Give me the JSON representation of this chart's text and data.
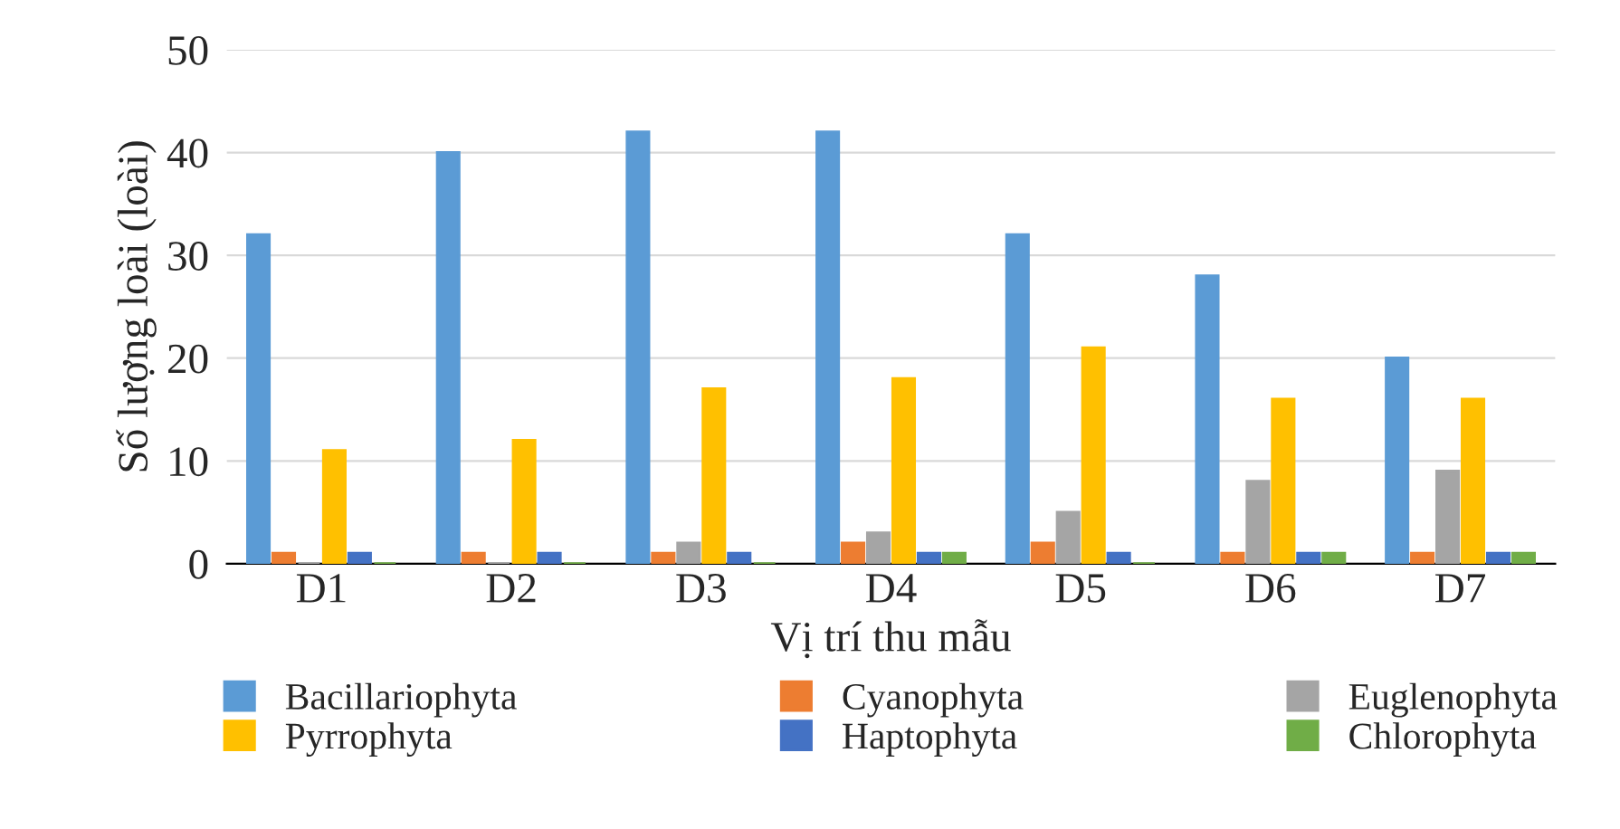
{
  "chart_data": {
    "type": "bar",
    "xlabel": "Vị trí thu mẫu",
    "ylabel": "Số lượng loài (loài)",
    "categories": [
      "D1",
      "D2",
      "D3",
      "D4",
      "D5",
      "D6",
      "D7"
    ],
    "series": [
      {
        "name": "Bacillariophyta",
        "color": "#5b9bd5",
        "values": [
          32,
          40,
          42,
          42,
          32,
          28,
          20
        ]
      },
      {
        "name": "Cyanophyta",
        "color": "#ed7d31",
        "values": [
          1,
          1,
          1,
          2,
          2,
          1,
          1
        ]
      },
      {
        "name": "Euglenophyta",
        "color": "#a5a5a5",
        "values": [
          0,
          0,
          2,
          3,
          5,
          8,
          9
        ]
      },
      {
        "name": "Pyrrophyta",
        "color": "#ffc000",
        "values": [
          11,
          12,
          17,
          18,
          21,
          16,
          16
        ]
      },
      {
        "name": "Haptophyta",
        "color": "#4472c4",
        "values": [
          1,
          1,
          1,
          1,
          1,
          1,
          1
        ]
      },
      {
        "name": "Chlorophyta",
        "color": "#70ad47",
        "values": [
          0,
          0,
          0,
          1,
          0,
          1,
          1
        ]
      }
    ],
    "ylim": [
      0,
      50
    ],
    "yticks": [
      0,
      10,
      20,
      30,
      40,
      50
    ],
    "grid": "y",
    "legend": "bottom"
  }
}
